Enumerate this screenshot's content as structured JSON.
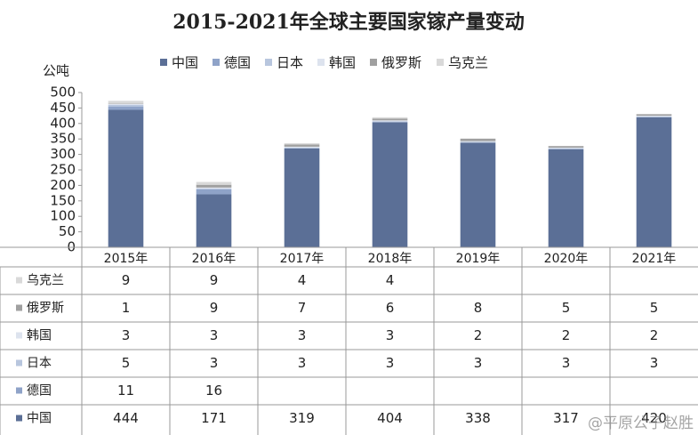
{
  "chart_data": {
    "type": "bar",
    "stacked": true,
    "title": "2015-2021年全球主要国家镓产量变动",
    "y_label": "公吨",
    "categories": [
      "2015年",
      "2016年",
      "2017年",
      "2018年",
      "2019年",
      "2020年",
      "2021年"
    ],
    "series": [
      {
        "name": "中国",
        "color": "#5b6f96",
        "values": [
          444,
          171,
          319,
          404,
          338,
          317,
          420
        ]
      },
      {
        "name": "德国",
        "color": "#8fa3c8",
        "values": [
          11,
          16,
          null,
          null,
          null,
          null,
          null
        ]
      },
      {
        "name": "日本",
        "color": "#b8c6de",
        "values": [
          5,
          3,
          3,
          3,
          3,
          3,
          3
        ]
      },
      {
        "name": "韩国",
        "color": "#dde3ee",
        "values": [
          3,
          3,
          3,
          3,
          2,
          2,
          2
        ]
      },
      {
        "name": "俄罗斯",
        "color": "#a0a0a0",
        "values": [
          1,
          9,
          7,
          6,
          8,
          5,
          5
        ]
      },
      {
        "name": "乌克兰",
        "color": "#d9d9d9",
        "values": [
          9,
          9,
          4,
          4,
          null,
          null,
          null
        ]
      }
    ],
    "ylim": [
      0,
      500
    ],
    "yticks": [
      0,
      50,
      100,
      150,
      200,
      250,
      300,
      350,
      400,
      450,
      500
    ],
    "watermark": "@平原公子赵胜"
  }
}
